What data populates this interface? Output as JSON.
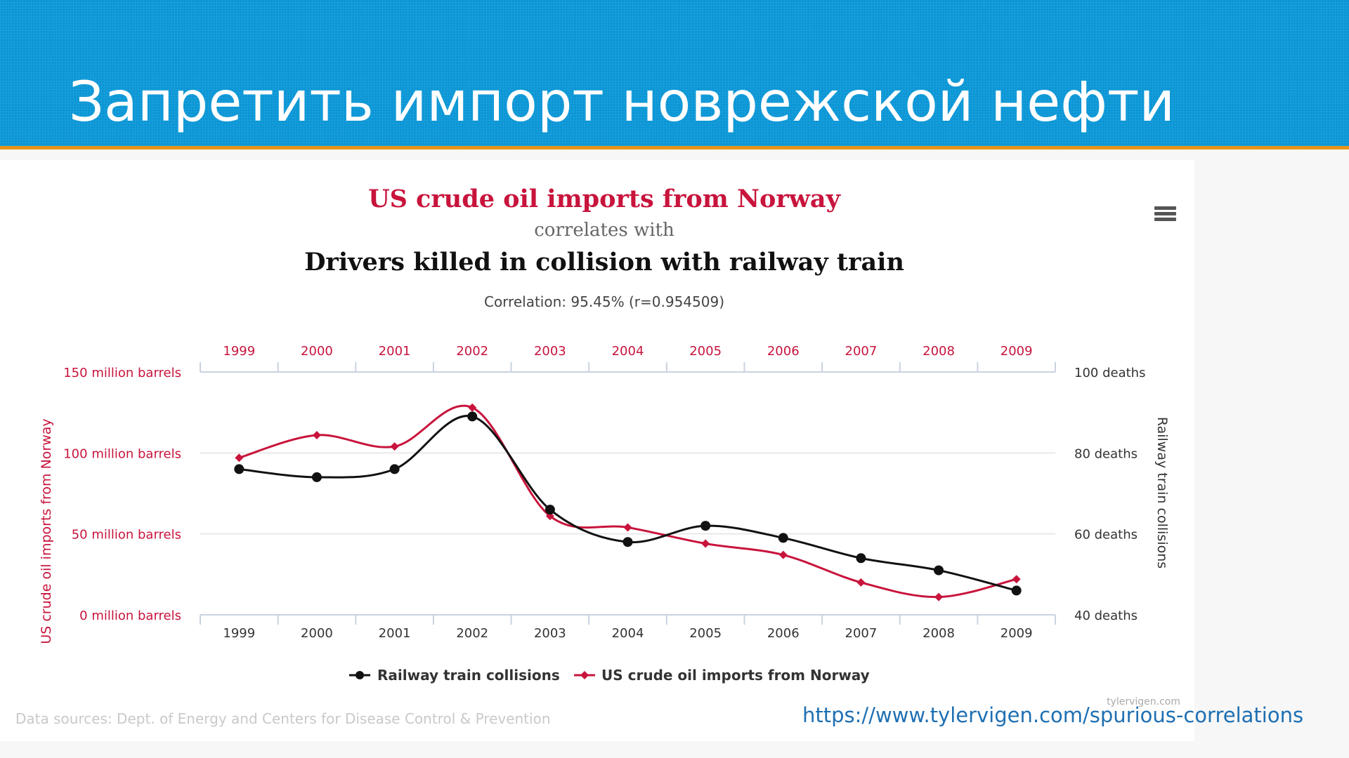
{
  "slide": {
    "title": "Запретить импорт новрежской нефти",
    "link": "https://www.tylervigen.com/spurious-correlations"
  },
  "colors": {
    "banner": "#0a96d6",
    "rule": "#e8931a",
    "oil": "#c8143c",
    "collisions": "#111111"
  },
  "chart_data": {
    "type": "line",
    "title": "US crude oil imports from Norway",
    "subtitle": "correlates with",
    "title2": "Drivers killed in collision with railway train",
    "correlation": "Correlation: 95.45% (r=0.954509)",
    "x": [
      "1999",
      "2000",
      "2001",
      "2002",
      "2003",
      "2004",
      "2005",
      "2006",
      "2007",
      "2008",
      "2009"
    ],
    "left_axis": {
      "label": "US crude oil imports from Norway",
      "ylim": [
        0,
        150
      ],
      "ticks": [
        {
          "value": 150,
          "label": "150 million barrels"
        },
        {
          "value": 100,
          "label": "100 million barrels"
        },
        {
          "value": 50,
          "label": "50 million barrels"
        },
        {
          "value": 0,
          "label": "0 million barrels"
        }
      ]
    },
    "right_axis": {
      "label": "Railway train collisions",
      "ylim": [
        40,
        100
      ],
      "ticks": [
        {
          "value": 100,
          "label": "100 deaths"
        },
        {
          "value": 80,
          "label": "80 deaths"
        },
        {
          "value": 60,
          "label": "60 deaths"
        },
        {
          "value": 40,
          "label": "40 deaths"
        }
      ]
    },
    "series": [
      {
        "name": "Railway train collisions",
        "axis": "right",
        "color": "#111111",
        "marker": "circle",
        "values": [
          76,
          74,
          76,
          89,
          66,
          58,
          62,
          59,
          54,
          51,
          46
        ]
      },
      {
        "name": "US crude oil imports from Norway",
        "axis": "left",
        "color": "#c8143c",
        "marker": "diamond",
        "values": [
          97,
          111,
          104,
          128,
          61,
          54,
          44,
          37,
          20,
          11,
          22
        ]
      }
    ],
    "legend": "bottom-center",
    "grid": true,
    "credit": "tylervigen.com",
    "sources": "Data sources: Dept. of Energy and Centers for Disease Control & Prevention"
  }
}
